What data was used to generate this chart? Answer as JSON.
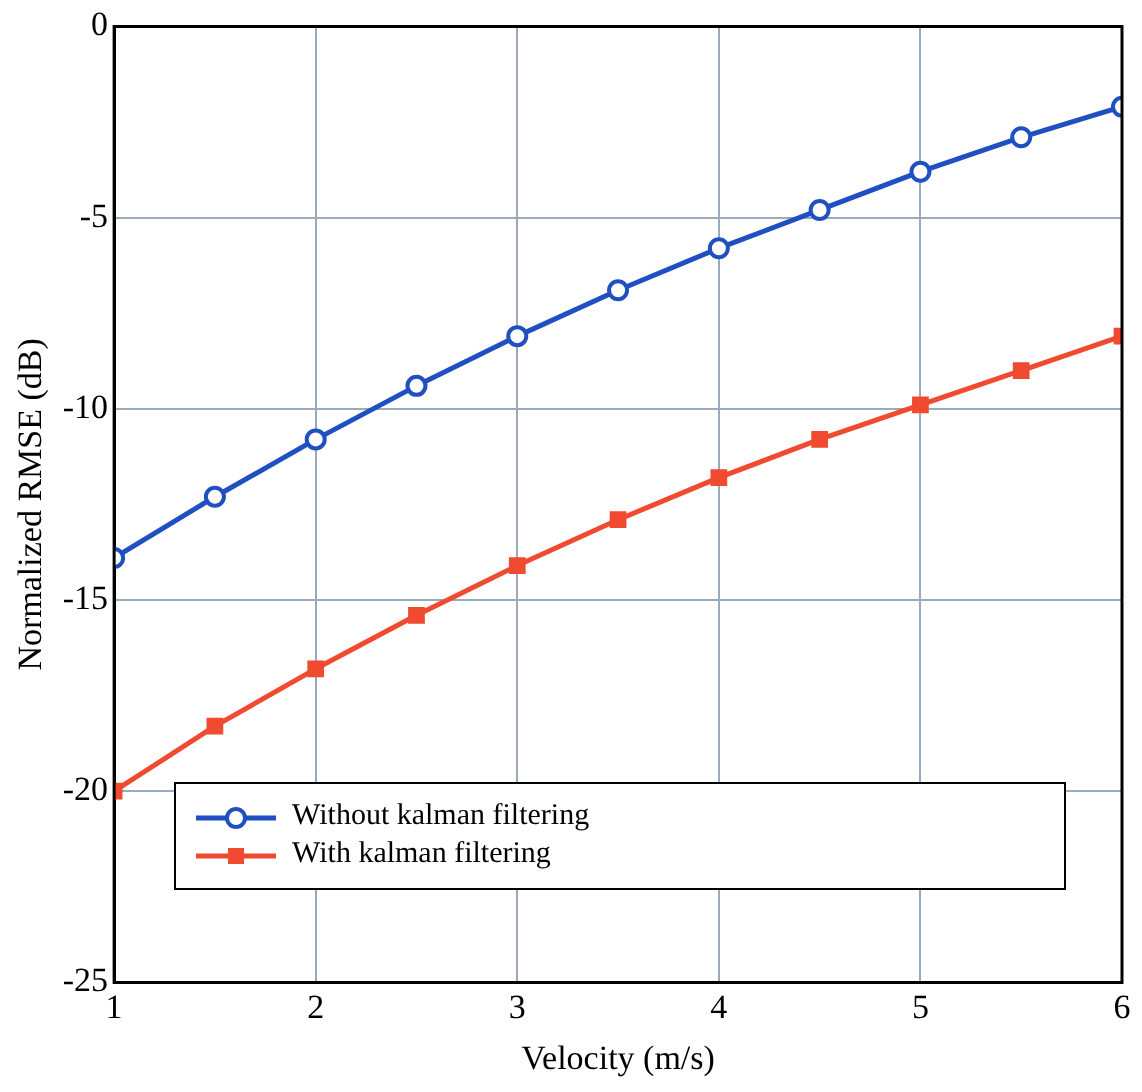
{
  "chart_data": {
    "type": "line",
    "xlabel": "Velocity (m/s)",
    "ylabel": "Normalized RMSE (dB)",
    "x": [
      1,
      1.5,
      2,
      2.5,
      3,
      3.5,
      4,
      4.5,
      5,
      5.5,
      6
    ],
    "series": [
      {
        "name": "Without kalman filtering",
        "color": "#1f4fc0",
        "marker": "circle",
        "values": [
          -13.9,
          -12.3,
          -10.8,
          -9.4,
          -8.1,
          -6.9,
          -5.8,
          -4.8,
          -3.8,
          -2.9,
          -2.1
        ]
      },
      {
        "name": "With kalman filtering",
        "color": "#f04a30",
        "marker": "square",
        "values": [
          -20,
          -18.3,
          -16.8,
          -15.4,
          -14.1,
          -12.9,
          -11.8,
          -10.8,
          -9.9,
          -9,
          -8.1
        ]
      }
    ],
    "xlim": [
      1,
      6
    ],
    "xticks": [
      1,
      2,
      3,
      4,
      5,
      6
    ],
    "ylim": [
      -25,
      0
    ],
    "yticks": [
      -25,
      -20,
      -15,
      -10,
      -5,
      0
    ],
    "grid": true,
    "legend": "bottom",
    "line_style": "solid"
  }
}
